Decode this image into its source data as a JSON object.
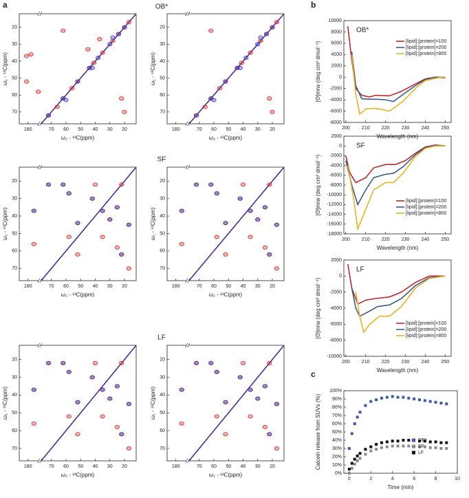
{
  "chart_data": [
    {
      "type": "contour",
      "panel": "a",
      "title": "OB*",
      "xlabel": "ω₂ - ¹³C(ppm)",
      "ylabel": "ω₁ - ¹³C(ppm)",
      "xlim": [
        186,
        12
      ],
      "xbreak": [
        172,
        78
      ],
      "xticks": [
        180,
        70,
        60,
        50,
        40,
        30,
        20
      ],
      "ylim": [
        12,
        77
      ],
      "yticks": [
        20,
        30,
        40,
        50,
        60,
        70
      ],
      "diagonal": true,
      "series": [
        {
          "color": "#d42424",
          "x": [
            181,
            181,
            178,
            173,
            72,
            66,
            62,
            56,
            52,
            44,
            41,
            35,
            28,
            24,
            20,
            17,
            37,
            62,
            22,
            45,
            20
          ],
          "y": [
            37,
            52,
            36,
            58,
            72,
            67,
            62,
            56,
            52,
            44,
            41,
            35,
            28,
            24,
            20,
            17,
            27,
            22,
            62,
            33,
            70
          ]
        },
        {
          "color": "#3434b4",
          "x": [
            72,
            62,
            52,
            44,
            38,
            30,
            24,
            20,
            60,
            42,
            28
          ],
          "y": [
            72,
            62,
            52,
            44,
            38,
            30,
            24,
            20,
            63,
            44,
            26
          ]
        }
      ]
    },
    {
      "type": "contour",
      "xlabel": "ω₂ - ¹³C(ppm)",
      "ylabel": "ω₁ - ¹³C(ppm)",
      "xlim": [
        186,
        12
      ],
      "xbreak": [
        172,
        78
      ],
      "xticks": [
        180,
        70,
        60,
        50,
        40,
        30,
        20
      ],
      "ylim": [
        12,
        77
      ],
      "yticks": [
        20,
        30,
        40,
        50,
        60,
        70
      ],
      "diagonal": true,
      "series": [
        {
          "color": "#d42424",
          "x": [
            72,
            66,
            62,
            56,
            52,
            44,
            41,
            35,
            28,
            24,
            20,
            17,
            62,
            22,
            20
          ],
          "y": [
            72,
            67,
            62,
            56,
            52,
            44,
            41,
            35,
            28,
            24,
            20,
            17,
            22,
            62,
            70
          ]
        },
        {
          "color": "#3434b4",
          "x": [
            72,
            62,
            52,
            44,
            38,
            30,
            24,
            20,
            60,
            42,
            28
          ],
          "y": [
            72,
            62,
            52,
            44,
            38,
            30,
            24,
            20,
            63,
            44,
            26
          ]
        }
      ]
    },
    {
      "type": "contour",
      "title": "SF",
      "xlabel": "ω₂ - ¹³C(ppm)",
      "ylabel": "ω₁ - ¹³C(ppm)",
      "xlim": [
        186,
        12
      ],
      "xbreak": [
        172,
        78
      ],
      "xticks": [
        180,
        70,
        60,
        50,
        40,
        30,
        20
      ],
      "ylim": [
        12,
        77
      ],
      "yticks": [
        20,
        30,
        40,
        50,
        60,
        70
      ],
      "diagonal": true,
      "series": [
        {
          "color": "#d42424",
          "x": [
            176,
            176,
            72,
            62,
            58,
            58,
            52,
            52,
            42,
            40,
            35,
            35,
            30,
            25,
            25,
            22,
            22,
            17,
            17
          ],
          "y": [
            37,
            56,
            22,
            22,
            27,
            52,
            44,
            62,
            30,
            22,
            37,
            52,
            42,
            35,
            58,
            22,
            62,
            45,
            70
          ]
        },
        {
          "color": "#3434b4",
          "x": [
            176,
            72,
            62,
            58,
            52,
            42,
            35,
            30,
            25,
            22,
            17
          ],
          "y": [
            37,
            22,
            22,
            27,
            44,
            30,
            37,
            42,
            35,
            62,
            45
          ]
        }
      ]
    },
    {
      "type": "contour",
      "xlabel": "ω₂ - ¹³C(ppm)",
      "ylabel": "ω₁ - ¹³C(ppm)",
      "xlim": [
        186,
        12
      ],
      "xbreak": [
        172,
        78
      ],
      "xticks": [
        180,
        70,
        60,
        50,
        40,
        30,
        20
      ],
      "ylim": [
        12,
        77
      ],
      "yticks": [
        20,
        30,
        40,
        50,
        60,
        70
      ],
      "diagonal": true,
      "series": [
        {
          "color": "#d42424",
          "x": [
            176,
            176,
            72,
            62,
            58,
            58,
            52,
            52,
            42,
            40,
            35,
            35,
            30,
            25,
            25,
            22,
            22,
            17,
            17
          ],
          "y": [
            37,
            56,
            22,
            22,
            27,
            52,
            44,
            62,
            30,
            22,
            37,
            52,
            42,
            35,
            58,
            22,
            62,
            45,
            70
          ]
        },
        {
          "color": "#3434b4",
          "x": [
            176,
            72,
            62,
            58,
            52,
            42,
            35,
            30,
            25,
            22,
            17
          ],
          "y": [
            37,
            22,
            22,
            27,
            44,
            30,
            37,
            42,
            35,
            62,
            45
          ]
        }
      ]
    },
    {
      "type": "contour",
      "title": "LF",
      "xlabel": "ω₂ - ¹³C(ppm)",
      "ylabel": "ω₁ - ¹³C(ppm)",
      "xlim": [
        186,
        12
      ],
      "xbreak": [
        172,
        78
      ],
      "xticks": [
        180,
        70,
        60,
        50,
        40,
        30,
        20
      ],
      "ylim": [
        12,
        77
      ],
      "yticks": [
        20,
        30,
        40,
        50,
        60,
        70
      ],
      "diagonal": true,
      "series": [
        {
          "color": "#d42424",
          "x": [
            176,
            176,
            72,
            62,
            58,
            58,
            52,
            52,
            42,
            40,
            35,
            35,
            30,
            25,
            25,
            22,
            22,
            17,
            17
          ],
          "y": [
            37,
            56,
            22,
            22,
            27,
            52,
            44,
            62,
            30,
            22,
            37,
            52,
            42,
            35,
            58,
            22,
            62,
            45,
            70
          ]
        },
        {
          "color": "#3434b4",
          "x": [
            176,
            72,
            62,
            58,
            52,
            42,
            35,
            30,
            25,
            22,
            17
          ],
          "y": [
            37,
            22,
            22,
            27,
            44,
            30,
            37,
            42,
            35,
            62,
            45
          ]
        }
      ]
    },
    {
      "type": "contour",
      "xlabel": "ω₂ - ¹³C(ppm)",
      "ylabel": "ω₁ - ¹³C(ppm)",
      "xlim": [
        186,
        12
      ],
      "xbreak": [
        172,
        78
      ],
      "xticks": [
        180,
        70,
        60,
        50,
        40,
        30,
        20
      ],
      "ylim": [
        12,
        77
      ],
      "yticks": [
        20,
        30,
        40,
        50,
        60,
        70
      ],
      "diagonal": true,
      "series": [
        {
          "color": "#d42424",
          "x": [
            176,
            176,
            72,
            62,
            58,
            58,
            52,
            52,
            42,
            40,
            35,
            35,
            30,
            25,
            25,
            22,
            22,
            17,
            17
          ],
          "y": [
            37,
            56,
            22,
            22,
            27,
            52,
            44,
            62,
            30,
            22,
            37,
            52,
            42,
            35,
            58,
            22,
            62,
            45,
            70
          ]
        },
        {
          "color": "#3434b4",
          "x": [
            176,
            72,
            62,
            58,
            52,
            42,
            35,
            30,
            25,
            22,
            17
          ],
          "y": [
            37,
            22,
            22,
            27,
            44,
            30,
            37,
            42,
            35,
            62,
            45
          ]
        }
      ]
    },
    {
      "type": "line",
      "panel": "b",
      "label": "OB*",
      "xlabel": "Wavelength (nm)",
      "ylabel": "[Θ]mrw (deg cm² dmol⁻¹)",
      "xlim": [
        199,
        253
      ],
      "xticks": [
        200,
        210,
        220,
        230,
        240,
        250
      ],
      "ylim": [
        -8000,
        10000
      ],
      "yticks": [
        -8000,
        -6000,
        -4000,
        -2000,
        0,
        2000,
        4000,
        6000,
        8000,
        10000
      ],
      "legend": "upper right",
      "series": [
        {
          "name": "[lipid]:[protein]=100",
          "color": "#c0272d",
          "x": [
            201,
            203,
            205,
            208,
            212,
            215,
            222,
            228,
            235,
            240,
            245,
            250
          ],
          "values": [
            9000,
            3000,
            -2000,
            -3200,
            -3500,
            -3200,
            -3300,
            -2500,
            -1200,
            -300,
            0,
            -100
          ]
        },
        {
          "name": "[lipid]:[protein]=200",
          "color": "#3b5a8a",
          "x": [
            203,
            205,
            208,
            212,
            216,
            220,
            224,
            229,
            235,
            240,
            245,
            250
          ],
          "values": [
            4500,
            -1500,
            -3800,
            -3900,
            -3900,
            -4000,
            -4300,
            -3000,
            -1500,
            -400,
            0,
            0
          ]
        },
        {
          "name": "[lipid]:[protein]=800",
          "color": "#e8b422",
          "x": [
            203,
            205,
            207,
            209,
            210,
            215,
            222,
            229,
            235,
            240,
            248,
            250
          ],
          "values": [
            4000,
            -3000,
            -6500,
            -6000,
            -5600,
            -5500,
            -6000,
            -4200,
            -2000,
            -600,
            0,
            0
          ]
        }
      ]
    },
    {
      "type": "line",
      "label": "SF",
      "xlabel": "Wavelength (nm)",
      "ylabel": "[Θ]mrw (deg cm² dmol⁻¹)",
      "xlim": [
        199,
        253
      ],
      "xticks": [
        200,
        210,
        220,
        230,
        240,
        250
      ],
      "ylim": [
        -18000,
        2000
      ],
      "yticks": [
        -18000,
        -16000,
        -14000,
        -12000,
        -10000,
        -8000,
        -6000,
        -4000,
        -2000,
        0,
        2000
      ],
      "legend": "lower right",
      "series": [
        {
          "name": "[lipid]:[protein]=100",
          "color": "#c0272d",
          "x": [
            200,
            202,
            205,
            210,
            214,
            220,
            225,
            230,
            235,
            240,
            245,
            250
          ],
          "values": [
            -2000,
            -5500,
            -7500,
            -6500,
            -4500,
            -3800,
            -3800,
            -3000,
            -1500,
            -200,
            200,
            0
          ]
        },
        {
          "name": "[lipid]:[protein]=200",
          "color": "#3b5a8a",
          "x": [
            200,
            203,
            206,
            210,
            214,
            220,
            224,
            229,
            235,
            240,
            245,
            250
          ],
          "values": [
            -3000,
            -8000,
            -12000,
            -9000,
            -6500,
            -5800,
            -5600,
            -4200,
            -1800,
            -300,
            100,
            0
          ]
        },
        {
          "name": "[lipid]:[protein]=800",
          "color": "#e8b422",
          "x": [
            201,
            204,
            206,
            209,
            214,
            220,
            224,
            229,
            235,
            240,
            245,
            250
          ],
          "values": [
            -4000,
            -11000,
            -17000,
            -14000,
            -9000,
            -7500,
            -7500,
            -5500,
            -2200,
            -500,
            0,
            0
          ]
        }
      ]
    },
    {
      "type": "line",
      "label": "LF",
      "xlabel": "Wavelength (nm)",
      "ylabel": "[Θ]mrw (deg cm² dmol⁻¹)",
      "xlim": [
        199,
        253
      ],
      "xticks": [
        200,
        210,
        220,
        230,
        240,
        250
      ],
      "ylim": [
        -10000,
        2000
      ],
      "yticks": [
        -10000,
        -8000,
        -6000,
        -4000,
        -2000,
        0,
        2000
      ],
      "legend": "lower right",
      "series": [
        {
          "name": "[lipid]:[protein]=100",
          "color": "#c0272d",
          "x": [
            201,
            203,
            206,
            210,
            215,
            222,
            228,
            235,
            242,
            250
          ],
          "values": [
            1500,
            -1500,
            -3500,
            -3000,
            -2800,
            -2600,
            -2000,
            -800,
            0,
            0
          ]
        },
        {
          "name": "[lipid]:[protein]=200",
          "color": "#3b5a8a",
          "x": [
            203,
            205,
            207,
            211,
            216,
            222,
            228,
            235,
            242,
            250
          ],
          "values": [
            -1500,
            -4000,
            -5000,
            -4500,
            -3800,
            -3600,
            -2800,
            -1200,
            -200,
            0
          ]
        },
        {
          "name": "[lipid]:[protein]=800",
          "color": "#e8b422",
          "x": [
            205,
            207,
            209,
            212,
            217,
            222,
            228,
            235,
            242,
            250
          ],
          "values": [
            -2000,
            -5000,
            -7000,
            -6000,
            -5000,
            -5000,
            -3800,
            -1500,
            -300,
            0
          ]
        }
      ]
    },
    {
      "type": "scatter",
      "panel": "c",
      "xlabel": "Time (min)",
      "ylabel": "Calcein release from SUVs (%)",
      "xlim": [
        -0.5,
        10
      ],
      "xticks": [
        0,
        2,
        4,
        6,
        8,
        10
      ],
      "ylim": [
        0,
        100
      ],
      "yticks": [
        {
          "value": 0,
          "label": "0%"
        },
        {
          "value": 10,
          "label": "10%"
        },
        {
          "value": 20,
          "label": "20%"
        },
        {
          "value": 30,
          "label": "30%"
        },
        {
          "value": 40,
          "label": "40%"
        },
        {
          "value": 50,
          "label": "50%"
        },
        {
          "value": 60,
          "label": "60%"
        },
        {
          "value": 70,
          "label": "70%"
        },
        {
          "value": 80,
          "label": "80%"
        },
        {
          "value": 90,
          "label": "90%"
        },
        {
          "value": 100,
          "label": "100%"
        }
      ],
      "legend": "lower right",
      "x": [
        0,
        0.25,
        0.5,
        0.75,
        1,
        1.5,
        2,
        2.5,
        3,
        3.5,
        4,
        4.5,
        5,
        5.5,
        6,
        6.5,
        7,
        7.5,
        8,
        8.5,
        9
      ],
      "series": [
        {
          "name": "OB*",
          "color": "#3b5aa8",
          "values": [
            30,
            48,
            60,
            68,
            74,
            82,
            87,
            89,
            91,
            92,
            93,
            92,
            92,
            91,
            90,
            89,
            88,
            87,
            86,
            85,
            84
          ]
        },
        {
          "name": "SF",
          "color": "#8a8a8a",
          "values": [
            0,
            6,
            11,
            15,
            18,
            23,
            27,
            29,
            31,
            32,
            33,
            33,
            33,
            33,
            32,
            32,
            32,
            31,
            31,
            30,
            30
          ]
        },
        {
          "name": "LF",
          "color": "#111111",
          "values": [
            5,
            12,
            17,
            21,
            24,
            29,
            32,
            35,
            37,
            38,
            39,
            39,
            40,
            40,
            40,
            39,
            39,
            38,
            38,
            37,
            37
          ]
        }
      ]
    }
  ]
}
